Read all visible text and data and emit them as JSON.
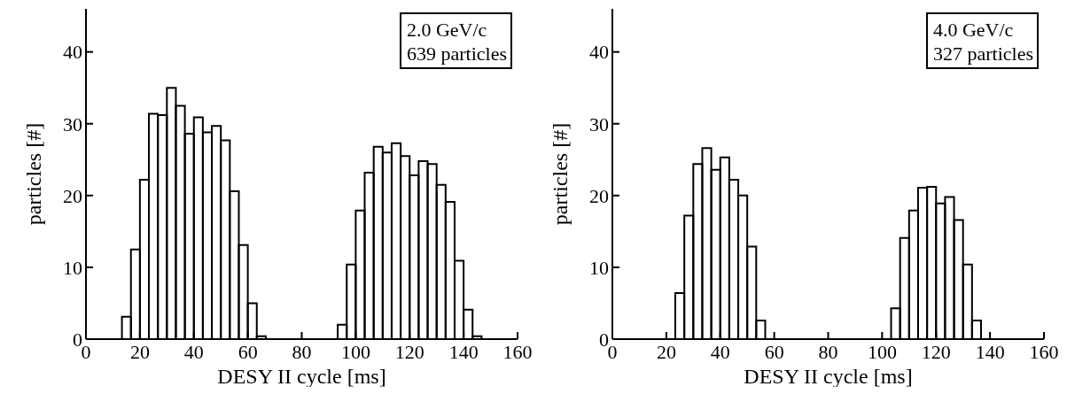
{
  "chart_data": [
    {
      "type": "histogram",
      "xlabel": "DESY II cycle [ms]",
      "ylabel": "particles [#]",
      "annotations": [
        "2.0 GeV/c\n639 particles"
      ],
      "color": "#000000",
      "bins": [
        13.33,
        16.67,
        20,
        23.33,
        26.67,
        30,
        33.33,
        36.67,
        40,
        43.33,
        46.67,
        50,
        53.33,
        56.67,
        60,
        63.33,
        66.67,
        70,
        73.33,
        76.67,
        80,
        83.33,
        86.67,
        90,
        93.33,
        96.67,
        100,
        103.33,
        106.67,
        110,
        113.33,
        116.67,
        120,
        123.33,
        126.67,
        130,
        133.33,
        136.67,
        140,
        143.33,
        146.67
      ],
      "values": [
        3.1,
        12.5,
        22.2,
        31.4,
        31.2,
        35.0,
        32.5,
        28.6,
        30.9,
        28.8,
        29.7,
        27.7,
        20.6,
        13.1,
        5.0,
        0.4,
        0,
        0,
        0,
        0,
        0,
        0,
        0,
        0,
        2.0,
        10.4,
        17.9,
        23.2,
        26.8,
        26.0,
        27.3,
        25.5,
        22.8,
        24.8,
        24.4,
        21.5,
        19.1,
        10.9,
        4.1,
        0.4
      ],
      "xlim": [
        0,
        160
      ],
      "xticks": [
        0,
        20,
        40,
        60,
        80,
        100,
        120,
        140,
        160
      ],
      "ylim": [
        0,
        46
      ],
      "yticks": [
        0,
        10,
        20,
        30,
        40
      ],
      "grid": false
    },
    {
      "type": "histogram",
      "xlabel": "DESY II cycle [ms]",
      "ylabel": "particles [#]",
      "annotations": [
        "4.0 GeV/c\n327 particles"
      ],
      "color": "#000000",
      "bins": [
        23.33,
        26.67,
        30,
        33.33,
        36.67,
        40,
        43.33,
        46.67,
        50,
        53.33,
        56.67,
        60,
        63.33,
        66.67,
        70,
        73.33,
        76.67,
        80,
        83.33,
        86.67,
        90,
        93.33,
        96.67,
        100,
        103.33,
        106.67,
        110,
        113.33,
        116.67,
        120,
        123.33,
        126.67,
        130,
        133.33,
        136.67
      ],
      "values": [
        6.4,
        17.2,
        24.4,
        26.6,
        23.6,
        25.3,
        22.2,
        20.0,
        12.9,
        2.6,
        0,
        0,
        0,
        0,
        0,
        0,
        0,
        0,
        0,
        0,
        0,
        0,
        0,
        0,
        4.3,
        14.1,
        17.9,
        21.1,
        21.2,
        18.9,
        19.8,
        16.6,
        10.4,
        2.6
      ],
      "xlim": [
        0,
        160
      ],
      "xticks": [
        0,
        20,
        40,
        60,
        80,
        100,
        120,
        140,
        160
      ],
      "ylim": [
        0,
        46
      ],
      "yticks": [
        0,
        10,
        20,
        30,
        40
      ],
      "grid": false
    }
  ]
}
